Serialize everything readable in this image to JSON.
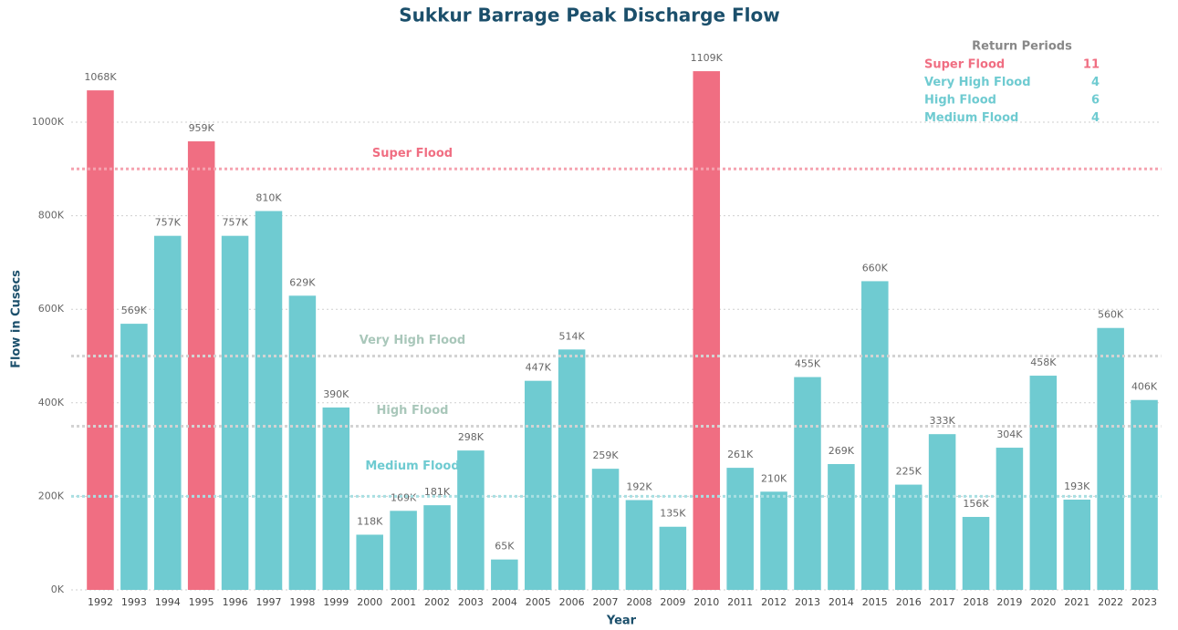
{
  "chart_data": {
    "type": "bar",
    "title": "Sukkur Barrage Peak Discharge Flow",
    "x_label": "Year",
    "y_label": "Flow in Cusecs",
    "categories": [
      "1992",
      "1993",
      "1994",
      "1995",
      "1996",
      "1997",
      "1998",
      "1999",
      "2000",
      "2001",
      "2002",
      "2003",
      "2004",
      "2005",
      "2006",
      "2007",
      "2008",
      "2009",
      "2010",
      "2011",
      "2012",
      "2013",
      "2014",
      "2015",
      "2016",
      "2017",
      "2018",
      "2019",
      "2020",
      "2021",
      "2022",
      "2023"
    ],
    "values": [
      1068,
      569,
      757,
      959,
      757,
      810,
      629,
      390,
      118,
      169,
      181,
      298,
      65,
      447,
      514,
      259,
      192,
      135,
      1109,
      261,
      210,
      455,
      269,
      660,
      225,
      333,
      156,
      304,
      458,
      193,
      560,
      406
    ],
    "value_labels": [
      "1068K",
      "569K",
      "757K",
      "959K",
      "757K",
      "810K",
      "629K",
      "390K",
      "118K",
      "169K",
      "181K",
      "298K",
      "65K",
      "447K",
      "514K",
      "259K",
      "192K",
      "135K",
      "1109K",
      "261K",
      "210K",
      "455K",
      "269K",
      "660K",
      "225K",
      "333K",
      "156K",
      "304K",
      "458K",
      "193K",
      "560K",
      "406K"
    ],
    "colors": [
      "#f06e82",
      "#6fcbd1",
      "#6fcbd1",
      "#f06e82",
      "#6fcbd1",
      "#6fcbd1",
      "#6fcbd1",
      "#6fcbd1",
      "#6fcbd1",
      "#6fcbd1",
      "#6fcbd1",
      "#6fcbd1",
      "#6fcbd1",
      "#6fcbd1",
      "#6fcbd1",
      "#6fcbd1",
      "#6fcbd1",
      "#6fcbd1",
      "#f06e82",
      "#6fcbd1",
      "#6fcbd1",
      "#6fcbd1",
      "#6fcbd1",
      "#6fcbd1",
      "#6fcbd1",
      "#6fcbd1",
      "#6fcbd1",
      "#6fcbd1",
      "#6fcbd1",
      "#6fcbd1",
      "#6fcbd1",
      "#6fcbd1"
    ],
    "ylim": [
      0,
      1120
    ],
    "yticks": [
      {
        "value": 0,
        "label": "0K"
      },
      {
        "value": 200,
        "label": "200K"
      },
      {
        "value": 400,
        "label": "400K"
      },
      {
        "value": 600,
        "label": "600K"
      },
      {
        "value": 800,
        "label": "800K"
      },
      {
        "value": 1000,
        "label": "1000K"
      }
    ],
    "grid": true,
    "reference_lines": [
      {
        "label": "Super Flood",
        "value": 900,
        "color": "#f06e82",
        "line_color": "#f5a3b0"
      },
      {
        "label": "Very High Flood",
        "value": 500,
        "color": "#a9c7ba",
        "line_color": "#d3d3d3"
      },
      {
        "label": "High Flood",
        "value": 350,
        "color": "#a9c7ba",
        "line_color": "#d3d3d3"
      },
      {
        "label": "Medium Flood",
        "value": 200,
        "color": "#6fcbd1",
        "line_color": "#a9dfe2"
      }
    ],
    "legend": {
      "title": "Return Periods",
      "items": [
        {
          "name": "Super Flood",
          "count": 11,
          "color": "#f06e82"
        },
        {
          "name": "Very High Flood",
          "count": 4,
          "color": "#6fcbd1"
        },
        {
          "name": "High Flood",
          "count": 6,
          "color": "#6fcbd1"
        },
        {
          "name": "Medium Flood",
          "count": 4,
          "color": "#6fcbd1"
        }
      ]
    }
  }
}
